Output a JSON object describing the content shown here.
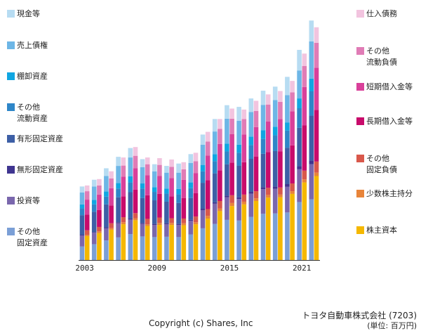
{
  "chart_data": {
    "type": "bar",
    "subtype": "paired-stacked",
    "title": "トヨタ自動車株式会社 (7203)",
    "unit_label": "(単位: 百万円)",
    "copyright": "Copyright (c) Shares, Inc",
    "categories": [
      "2003",
      "2004",
      "2005",
      "2006",
      "2007",
      "2008",
      "2009",
      "2010",
      "2011",
      "2012",
      "2013",
      "2014",
      "2015",
      "2016",
      "2017",
      "2018",
      "2019",
      "2020",
      "2021",
      "2022"
    ],
    "x_tick_labels": [
      "2003",
      "2009",
      "2015",
      "2021"
    ],
    "ylim": [
      0,
      75000000
    ],
    "legend_left_position": "left",
    "legend_right_position": "right",
    "assets": [
      {
        "name": "現金等",
        "label": "現金等",
        "color": "#b7dcf2",
        "values": [
          1800000,
          2000000,
          2300000,
          2700000,
          2800000,
          2400000,
          2100000,
          2000000,
          2700000,
          2600000,
          3000000,
          3700000,
          4000000,
          4100000,
          4000000,
          4200000,
          4000000,
          5400000,
          6100000,
          6200000
        ]
      },
      {
        "name": "売上債権",
        "label": "売上債権",
        "color": "#6db6e6",
        "values": [
          3500000,
          4000000,
          4600000,
          5100000,
          5600000,
          4800000,
          4700000,
          4700000,
          4800000,
          5800000,
          6000000,
          6700000,
          7400000,
          7100000,
          7300000,
          7500000,
          7900000,
          8100000,
          8300000,
          11000000
        ]
      },
      {
        "name": "棚卸資産",
        "label": "棚卸資産",
        "color": "#10a6e2",
        "values": [
          1200000,
          1300000,
          1500000,
          1600000,
          1800000,
          1500000,
          1400000,
          1500000,
          1600000,
          1700000,
          1900000,
          2100000,
          2300000,
          2400000,
          2500000,
          2600000,
          2500000,
          2400000,
          2900000,
          3800000
        ]
      },
      {
        "name": "その他流動資産",
        "label": "その他\n流動資産",
        "color": "#2e86c8",
        "values": [
          2000000,
          2200000,
          2300000,
          2600000,
          2900000,
          2800000,
          2500000,
          2400000,
          2600000,
          2900000,
          3400000,
          3600000,
          3800000,
          3800000,
          4100000,
          4400000,
          4700000,
          5100000,
          5800000,
          7200000
        ]
      },
      {
        "name": "有形固定資産",
        "label": "有形固定資産",
        "color": "#3d5fa6",
        "values": [
          5800000,
          6000000,
          6800000,
          7400000,
          7800000,
          7400000,
          7000000,
          6400000,
          6200000,
          6500000,
          7700000,
          8600000,
          9300000,
          9400000,
          9800000,
          9900000,
          10500000,
          10800000,
          11400000,
          13300000
        ]
      },
      {
        "name": "無形固定資産",
        "label": "無形固定資産",
        "color": "#3f3590",
        "values": [
          200000,
          200000,
          300000,
          300000,
          300000,
          300000,
          300000,
          300000,
          300000,
          300000,
          400000,
          400000,
          500000,
          500000,
          500000,
          600000,
          700000,
          800000,
          900000,
          1100000
        ]
      },
      {
        "name": "投資等",
        "label": "投資等",
        "color": "#7a67ad",
        "values": [
          3300000,
          3400000,
          3600000,
          4200000,
          4300000,
          3700000,
          3600000,
          3700000,
          3600000,
          4000000,
          5400000,
          6000000,
          6700000,
          6400000,
          6900000,
          7300000,
          7300000,
          7600000,
          9700000,
          10400000
        ]
      },
      {
        "name": "その他固定資産",
        "label": "その他\n固定資産",
        "color": "#7b9fd6",
        "values": [
          4000000,
          4700000,
          5800000,
          6700000,
          7700000,
          7000000,
          6800000,
          6900000,
          6800000,
          7600000,
          9400000,
          10700000,
          11900000,
          11700000,
          12800000,
          13700000,
          13800000,
          14100000,
          17200000,
          18000000
        ]
      }
    ],
    "liabilities": [
      {
        "name": "仕入債務",
        "label": "仕入債務",
        "color": "#f2c4df",
        "values": [
          1700000,
          1900000,
          2100000,
          2400000,
          2600000,
          2000000,
          2000000,
          2200000,
          2100000,
          2500000,
          2900000,
          2900000,
          3000000,
          2800000,
          3000000,
          3000000,
          3200000,
          3400000,
          3700000,
          4600000
        ]
      },
      {
        "name": "その他流動負債",
        "label": "その他\n流動負債",
        "color": "#e07cb6",
        "values": [
          2500000,
          2700000,
          2900000,
          3300000,
          3700000,
          3300000,
          3300000,
          3300000,
          3100000,
          3500000,
          4100000,
          4500000,
          4600000,
          4600000,
          4800000,
          5000000,
          5100000,
          5600000,
          6200000,
          7400000
        ]
      },
      {
        "name": "短期借入金等",
        "label": "短期借入金等",
        "color": "#d9409a",
        "values": [
          4400000,
          4600000,
          5100000,
          5800000,
          6300000,
          5900000,
          5300000,
          5400000,
          5400000,
          6000000,
          7300000,
          7800000,
          8400000,
          8200000,
          8700000,
          9100000,
          9600000,
          10100000,
          11400000,
          12500000
        ]
      },
      {
        "name": "長期借入金等",
        "label": "長期借入金等",
        "color": "#c80b6b",
        "values": [
          4700000,
          5000000,
          5300000,
          6200000,
          7000000,
          7000000,
          7000000,
          6500000,
          6100000,
          6900000,
          8600000,
          9100000,
          9700000,
          9600000,
          10300000,
          10600000,
          10700000,
          11300000,
          13400000,
          15300000
        ]
      },
      {
        "name": "その他固定負債",
        "label": "その他\n固定負債",
        "color": "#d9584b",
        "values": [
          1300000,
          1300000,
          1400000,
          1500000,
          1500000,
          1600000,
          1600000,
          1400000,
          1400000,
          1700000,
          2000000,
          2200000,
          2300000,
          2100000,
          2100000,
          2100000,
          2100000,
          2300000,
          2600000,
          3300000
        ]
      },
      {
        "name": "少数株主持分",
        "label": "少数株主持分",
        "color": "#e8843a",
        "values": [
          400000,
          500000,
          500000,
          600000,
          600000,
          500000,
          600000,
          600000,
          600000,
          600000,
          800000,
          800000,
          900000,
          800000,
          800000,
          800000,
          800000,
          800000,
          900000,
          1000000
        ]
      },
      {
        "name": "株主資本",
        "label": "株主資本",
        "color": "#f5b800",
        "values": [
          7100000,
          8000000,
          9000000,
          10600000,
          11800000,
          10100000,
          10400000,
          10400000,
          10300000,
          10600000,
          12300000,
          14500000,
          16000000,
          16500000,
          17500000,
          18500000,
          18600000,
          19600000,
          23000000,
          24900000
        ]
      }
    ]
  }
}
